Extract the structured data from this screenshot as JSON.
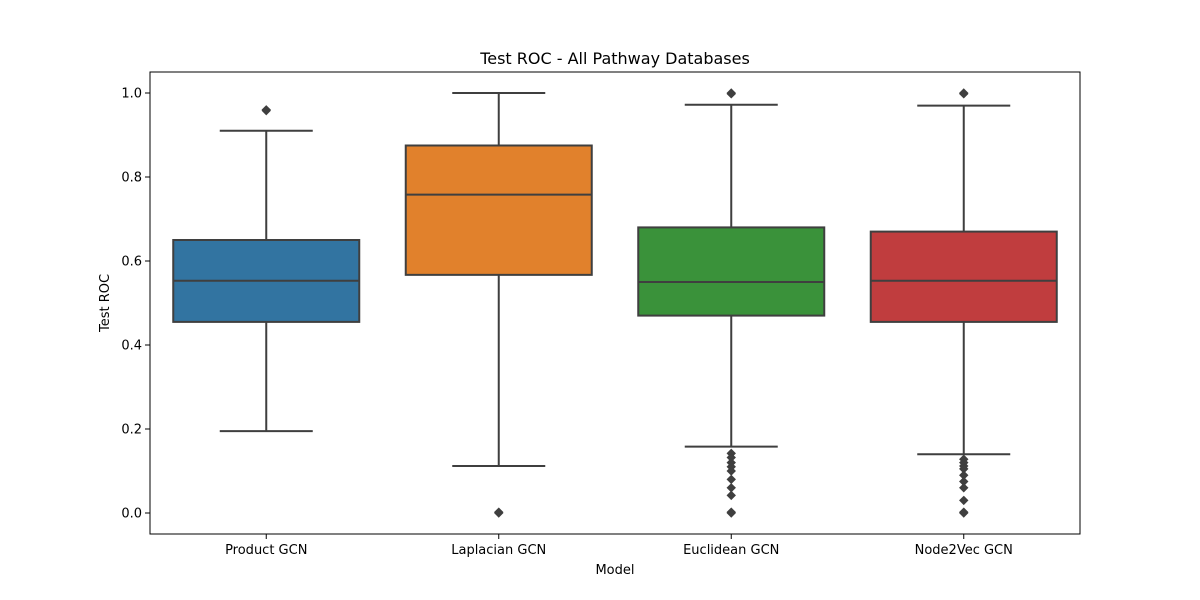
{
  "chart_data": {
    "type": "box",
    "title": "Test ROC - All Pathway Databases",
    "xlabel": "Model",
    "ylabel": "Test ROC",
    "ylim": [
      -0.05,
      1.05
    ],
    "yticks": [
      0.0,
      0.2,
      0.4,
      0.6,
      0.8,
      1.0
    ],
    "ytick_labels": [
      "0.0",
      "0.2",
      "0.4",
      "0.6",
      "0.8",
      "1.0"
    ],
    "grid": false,
    "series": [
      {
        "name": "Product GCN",
        "color": "#3274a1",
        "whisker_low": 0.195,
        "q1": 0.455,
        "median": 0.553,
        "q3": 0.65,
        "whisker_high": 0.91,
        "outliers": [
          0.96,
          0.958
        ]
      },
      {
        "name": "Laplacian GCN",
        "color": "#e1812c",
        "whisker_low": 0.112,
        "q1": 0.567,
        "median": 0.758,
        "q3": 0.875,
        "whisker_high": 1.0,
        "outliers": [
          0.0,
          0.002
        ]
      },
      {
        "name": "Euclidean GCN",
        "color": "#3a923a",
        "whisker_low": 0.158,
        "q1": 0.47,
        "median": 0.55,
        "q3": 0.68,
        "whisker_high": 0.972,
        "outliers": [
          0.142,
          0.132,
          0.12,
          0.11,
          0.1,
          0.08,
          0.06,
          0.042,
          0.002,
          0.0,
          1.0,
          0.998
        ]
      },
      {
        "name": "Node2Vec GCN",
        "color": "#c03d3e",
        "whisker_low": 0.14,
        "q1": 0.455,
        "median": 0.553,
        "q3": 0.67,
        "whisker_high": 0.97,
        "outliers": [
          0.128,
          0.12,
          0.112,
          0.105,
          0.09,
          0.075,
          0.06,
          0.03,
          0.002,
          0.0,
          1.0,
          0.998
        ]
      }
    ]
  }
}
